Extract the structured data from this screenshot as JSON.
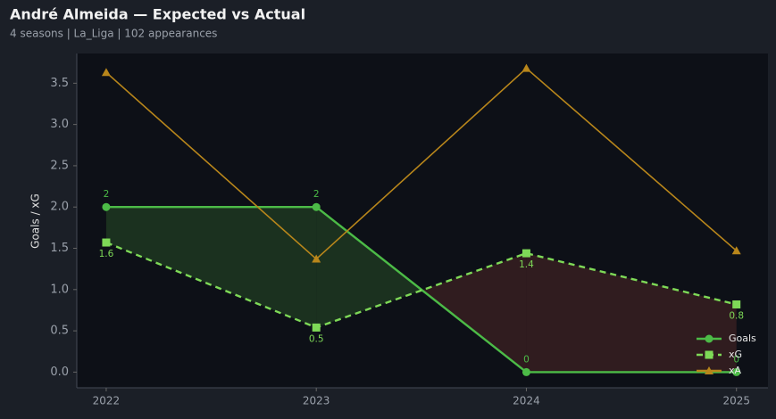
{
  "chart_data": {
    "type": "line",
    "title": "André Almeida — Expected vs Actual",
    "subtitle": "4 seasons | La_Liga | 102 appearances",
    "ylabel": "Goals / xG",
    "x": [
      2022,
      2023,
      2024,
      2025
    ],
    "xlim": [
      2021.86,
      2025.15
    ],
    "xticks": [
      2022,
      2023,
      2024,
      2025
    ],
    "ylim": [
      -0.19,
      3.86
    ],
    "yticks": [
      {
        "value": 0,
        "label": "0.0"
      },
      {
        "value": 0.5,
        "label": "0.5"
      },
      {
        "value": 1,
        "label": "1.0"
      },
      {
        "value": 1.5,
        "label": "1.5"
      },
      {
        "value": 2,
        "label": "2.0"
      },
      {
        "value": 2.5,
        "label": "2.5"
      },
      {
        "value": 3,
        "label": "3.0"
      },
      {
        "value": 3.5,
        "label": "3.5"
      }
    ],
    "series": [
      {
        "name": "Goals",
        "color": "#4cbb47",
        "marker": "circle",
        "dashed": false,
        "values": [
          2,
          2,
          0,
          0
        ]
      },
      {
        "name": "xG",
        "color": "#7ed957",
        "marker": "square",
        "dashed": true,
        "values": [
          1.57,
          0.54,
          1.44,
          0.82
        ],
        "value_labels": [
          "1.6",
          "0.5",
          "1.4",
          "0.8"
        ]
      },
      {
        "name": "xA",
        "color": "#b8861b",
        "marker": "triangle",
        "dashed": false,
        "values": [
          3.63,
          1.37,
          3.68,
          1.47
        ]
      }
    ],
    "legend": "lower right"
  }
}
